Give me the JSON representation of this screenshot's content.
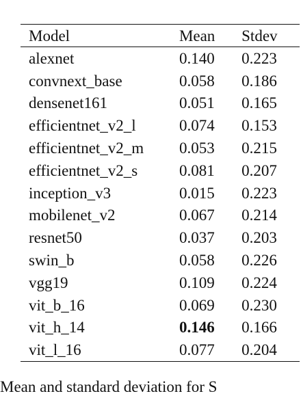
{
  "table": {
    "headers": {
      "model": "Model",
      "mean": "Mean",
      "stdev": "Stdev"
    },
    "rows": [
      {
        "model": "alexnet",
        "mean": "0.140",
        "stdev": "0.223"
      },
      {
        "model": "convnext_base",
        "mean": "0.058",
        "stdev": "0.186"
      },
      {
        "model": "densenet161",
        "mean": "0.051",
        "stdev": "0.165"
      },
      {
        "model": "efficientnet_v2_l",
        "mean": "0.074",
        "stdev": "0.153"
      },
      {
        "model": "efficientnet_v2_m",
        "mean": "0.053",
        "stdev": "0.215"
      },
      {
        "model": "efficientnet_v2_s",
        "mean": "0.081",
        "stdev": "0.207"
      },
      {
        "model": "inception_v3",
        "mean": "0.015",
        "stdev": "0.223"
      },
      {
        "model": "mobilenet_v2",
        "mean": "0.067",
        "stdev": "0.214"
      },
      {
        "model": "resnet50",
        "mean": "0.037",
        "stdev": "0.203"
      },
      {
        "model": "swin_b",
        "mean": "0.058",
        "stdev": "0.226"
      },
      {
        "model": "vgg19",
        "mean": "0.109",
        "stdev": "0.224"
      },
      {
        "model": "vit_b_16",
        "mean": "0.069",
        "stdev": "0.230"
      },
      {
        "model": "vit_h_14",
        "mean": "0.146",
        "stdev": "0.166",
        "mean_bold": true
      },
      {
        "model": "vit_l_16",
        "mean": "0.077",
        "stdev": "0.204"
      }
    ]
  },
  "caption": "Mean and standard deviation for S"
}
